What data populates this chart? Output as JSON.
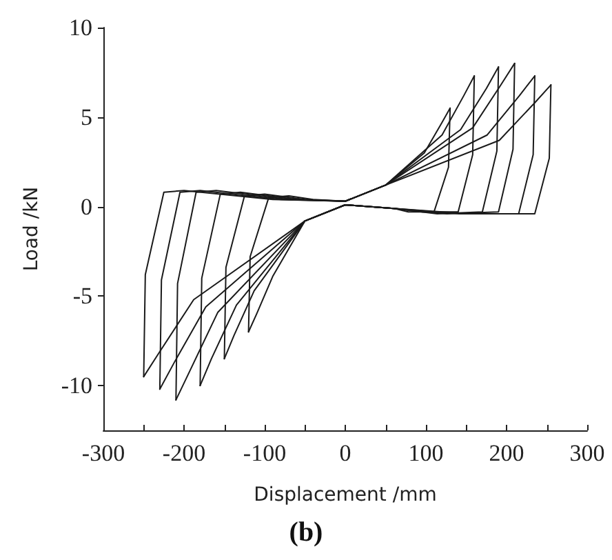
{
  "chart_data": {
    "type": "line",
    "xlabel": "Displacement /mm",
    "ylabel": "Load /kN",
    "annotations": [
      "(b)"
    ],
    "xlim": [
      -300,
      300
    ],
    "xticks": [
      -300,
      {
        "value": -250,
        "label": null
      },
      -200,
      {
        "value": -150,
        "label": null
      },
      -100,
      {
        "value": -50,
        "label": null
      },
      0,
      {
        "value": 50,
        "label": null
      },
      100,
      {
        "value": 150,
        "label": null
      },
      200,
      {
        "value": 250,
        "label": null
      },
      300
    ],
    "ylim": [
      -12.5,
      10
    ],
    "yticks": [
      -10,
      -5,
      0,
      5,
      10
    ],
    "grid": false,
    "marker": "none",
    "line_style": "solid",
    "series": [
      {
        "color": "#1a1a1a",
        "x": [
          -120,
          -118,
          -95,
          -70,
          -40,
          0,
          50,
          98,
          120,
          130
        ],
        "values": [
          -7,
          -2.8,
          0.5,
          0.6,
          0.4,
          0.3,
          1.2,
          3.0,
          4.7,
          5.5
        ]
      },
      {
        "color": "#1a1a1a",
        "x": [
          130,
          128,
          110,
          78,
          60,
          0,
          -50,
          -90,
          -110,
          -120
        ],
        "values": [
          5.5,
          2.2,
          -0.3,
          -0.3,
          -0.1,
          0.1,
          -0.8,
          -3.9,
          -6,
          -7
        ]
      },
      {
        "color": "#1a1a1a",
        "x": [
          -150,
          -148,
          -125,
          -100,
          -50,
          0,
          50,
          120,
          147,
          160
        ],
        "values": [
          -8.5,
          -3.4,
          0.6,
          0.7,
          0.4,
          0.3,
          1.2,
          4.0,
          6.2,
          7.3
        ]
      },
      {
        "color": "#1a1a1a",
        "x": [
          160,
          158,
          140,
          96,
          60,
          0,
          -50,
          -113,
          -138,
          -150
        ],
        "values": [
          7.3,
          2.9,
          -0.3,
          -0.3,
          -0.1,
          0.1,
          -0.8,
          -4.7,
          -7.2,
          -8.5
        ]
      },
      {
        "color": "#1a1a1a",
        "x": [
          -180,
          -178,
          -155,
          -130,
          -60,
          0,
          50,
          143,
          175,
          190
        ],
        "values": [
          -10,
          -4,
          0.7,
          0.8,
          0.4,
          0.3,
          1.2,
          4.3,
          6.6,
          7.8
        ]
      },
      {
        "color": "#1a1a1a",
        "x": [
          190,
          188,
          170,
          114,
          60,
          0,
          -50,
          -135,
          -166,
          -180
        ],
        "values": [
          7.8,
          3.1,
          -0.3,
          -0.4,
          -0.1,
          0.1,
          -0.8,
          -5.5,
          -8.5,
          -10
        ]
      },
      {
        "color": "#1a1a1a",
        "x": [
          -210,
          -208,
          -185,
          -160,
          -70,
          0,
          50,
          158,
          193,
          210
        ],
        "values": [
          -10.8,
          -4.3,
          0.8,
          0.9,
          0.4,
          0.3,
          1.2,
          4.4,
          6.8,
          8
        ]
      },
      {
        "color": "#1a1a1a",
        "x": [
          210,
          208,
          190,
          126,
          60,
          0,
          -50,
          -158,
          -193,
          -210
        ],
        "values": [
          8,
          3.2,
          -0.3,
          -0.4,
          -0.1,
          0.1,
          -0.8,
          -5.9,
          -9.2,
          -10.8
        ]
      },
      {
        "color": "#1a1a1a",
        "x": [
          -230,
          -228,
          -205,
          -180,
          -80,
          0,
          50,
          176,
          216,
          235
        ],
        "values": [
          -10.2,
          -4.1,
          0.8,
          0.9,
          0.4,
          0.3,
          1.2,
          4.0,
          6.2,
          7.3
        ]
      },
      {
        "color": "#1a1a1a",
        "x": [
          235,
          233,
          215,
          141,
          60,
          0,
          -50,
          -173,
          -212,
          -230
        ],
        "values": [
          7.3,
          2.9,
          -0.4,
          -0.4,
          -0.1,
          0.1,
          -0.8,
          -5.6,
          -8.7,
          -10.2
        ]
      },
      {
        "color": "#1a1a1a",
        "x": [
          -250,
          -248,
          -225,
          -200,
          -90,
          0,
          50,
          191,
          235,
          255
        ],
        "values": [
          -9.5,
          -3.8,
          0.8,
          0.9,
          0.4,
          0.3,
          1.2,
          3.7,
          5.8,
          6.8
        ]
      },
      {
        "color": "#1a1a1a",
        "x": [
          255,
          253,
          235,
          153,
          60,
          0,
          -50,
          -188,
          -230,
          -250
        ],
        "values": [
          6.8,
          2.7,
          -0.4,
          -0.4,
          -0.1,
          0.1,
          -0.8,
          -5.2,
          -8.1,
          -9.5
        ]
      }
    ]
  }
}
